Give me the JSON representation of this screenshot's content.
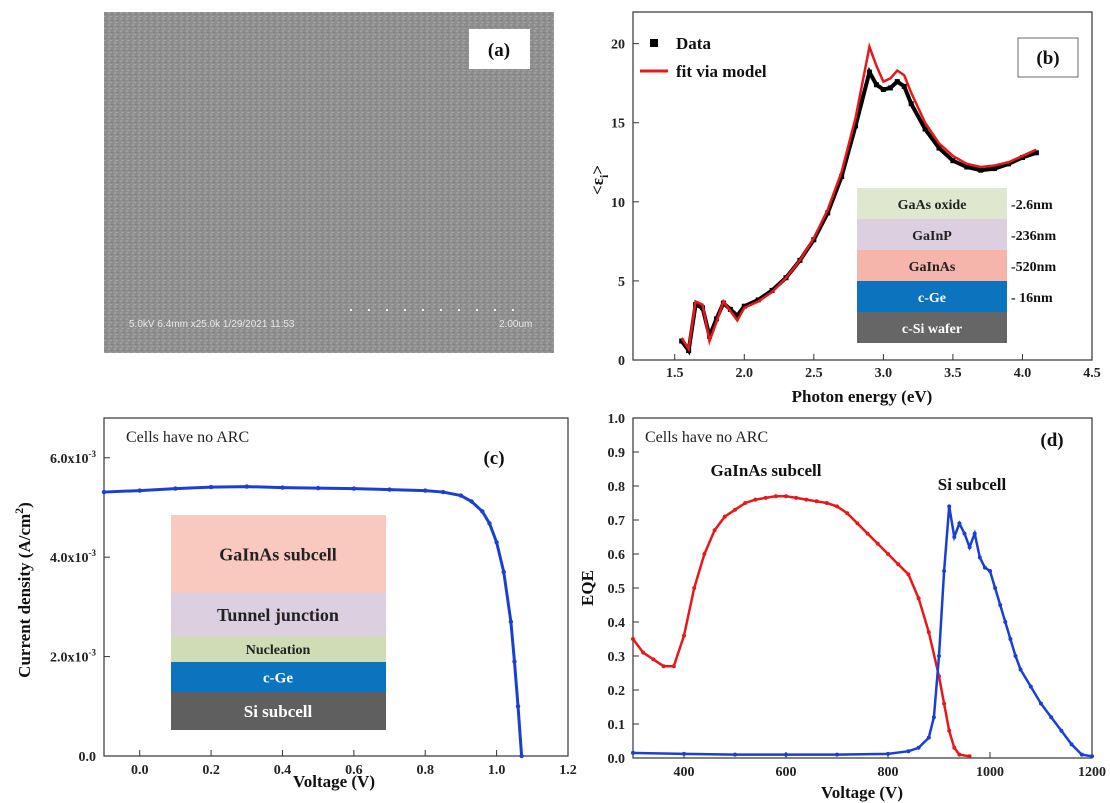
{
  "panel_a": {
    "label": "(a)",
    "sem_info": "5.0kV 6.4mm x25.0k 1/29/2021 11:53",
    "scale_bar": "2.00um"
  },
  "chart_data": [
    {
      "panel": "(b)",
      "type": "line",
      "xlabel": "Photon energy (eV)",
      "ylabel": "<ε",
      "ylabel_sub": "i",
      "ylabel_end": ">",
      "xlim": [
        1.2,
        4.5
      ],
      "ylim": [
        0,
        22
      ],
      "xticks": [
        "1.5",
        "2.0",
        "2.5",
        "3.0",
        "3.5",
        "4.0",
        "4.5"
      ],
      "yticks": [
        "0",
        "5",
        "10",
        "15",
        "20"
      ],
      "legend_position": "top-left",
      "series": [
        {
          "name": "Data",
          "color": "#000000",
          "marker": "square",
          "x": [
            1.55,
            1.6,
            1.65,
            1.7,
            1.75,
            1.8,
            1.85,
            1.9,
            1.95,
            2.0,
            2.1,
            2.2,
            2.3,
            2.4,
            2.5,
            2.6,
            2.7,
            2.8,
            2.9,
            2.95,
            3.0,
            3.05,
            3.1,
            3.15,
            3.2,
            3.3,
            3.4,
            3.5,
            3.6,
            3.7,
            3.8,
            3.9,
            4.0,
            4.1
          ],
          "y": [
            1.2,
            0.6,
            3.5,
            3.3,
            1.5,
            2.6,
            3.6,
            3.2,
            2.8,
            3.4,
            3.8,
            4.4,
            5.2,
            6.3,
            7.6,
            9.3,
            11.6,
            14.8,
            18.2,
            17.4,
            17.1,
            17.2,
            17.6,
            17.3,
            16.2,
            14.6,
            13.4,
            12.6,
            12.2,
            12.0,
            12.1,
            12.4,
            12.8,
            13.1
          ]
        },
        {
          "name": "fit via model",
          "color": "#e8181a",
          "marker": "none",
          "x": [
            1.55,
            1.6,
            1.65,
            1.7,
            1.75,
            1.8,
            1.85,
            1.9,
            1.95,
            2.0,
            2.1,
            2.2,
            2.3,
            2.4,
            2.5,
            2.6,
            2.7,
            2.8,
            2.9,
            2.95,
            3.0,
            3.05,
            3.1,
            3.15,
            3.2,
            3.3,
            3.4,
            3.5,
            3.6,
            3.7,
            3.8,
            3.9,
            4.0,
            4.1
          ],
          "y": [
            1.4,
            0.7,
            3.7,
            3.5,
            1.2,
            2.4,
            3.7,
            3.1,
            2.5,
            3.3,
            3.7,
            4.3,
            5.2,
            6.3,
            7.7,
            9.5,
            11.9,
            15.3,
            19.8,
            18.6,
            17.6,
            17.8,
            18.3,
            18.0,
            16.9,
            15.0,
            13.7,
            12.9,
            12.4,
            12.2,
            12.3,
            12.5,
            12.9,
            13.3
          ]
        }
      ],
      "stack": [
        {
          "layer": "GaAs oxide",
          "thickness": "-2.6nm",
          "color": "#dfe8cf"
        },
        {
          "layer": "GaInP",
          "thickness": "-236nm",
          "color": "#dccfe0"
        },
        {
          "layer": "GaInAs",
          "thickness": "-520nm",
          "color": "#f5b5ab"
        },
        {
          "layer": "c-Ge",
          "thickness": "- 16nm",
          "color": "#0c73bf"
        },
        {
          "layer": "c-Si wafer",
          "thickness": "",
          "color": "#666666"
        }
      ]
    },
    {
      "panel": "(c)",
      "type": "line",
      "xlabel": "Voltage (V)",
      "ylabel": "Current density (A/cm",
      "ylabel_sup": "2",
      "ylabel_end": ")",
      "xlim": [
        -0.1,
        1.2
      ],
      "ylim": [
        0,
        0.0068
      ],
      "xticks": [
        "0.0",
        "0.2",
        "0.4",
        "0.6",
        "0.8",
        "1.0",
        "1.2"
      ],
      "yticks": [
        {
          "value": 0,
          "mant": "0.0",
          "exp": ""
        },
        {
          "value": 0.002,
          "mant": "2.0x10",
          "exp": "-3"
        },
        {
          "value": 0.004,
          "mant": "4.0x10",
          "exp": "-3"
        },
        {
          "value": 0.006,
          "mant": "6.0x10",
          "exp": "-3"
        }
      ],
      "annotation": "Cells have no ARC",
      "series": [
        {
          "name": "",
          "color": "#1a3fd4",
          "x": [
            -0.1,
            0.0,
            0.1,
            0.2,
            0.3,
            0.4,
            0.5,
            0.6,
            0.7,
            0.8,
            0.85,
            0.9,
            0.93,
            0.96,
            0.98,
            1.0,
            1.02,
            1.04,
            1.05,
            1.06,
            1.07
          ],
          "y": [
            0.00531,
            0.00534,
            0.00538,
            0.00541,
            0.00542,
            0.0054,
            0.00539,
            0.00538,
            0.00536,
            0.00534,
            0.00531,
            0.00524,
            0.00512,
            0.00492,
            0.00468,
            0.0043,
            0.0037,
            0.0027,
            0.0019,
            0.001,
            0.0
          ]
        }
      ],
      "stack": [
        {
          "layer": "GaInAs subcell",
          "color": "#f9c9c0"
        },
        {
          "layer": "Tunnel junction",
          "color": "#dccfe0"
        },
        {
          "layer": "Nucleation",
          "color": "#cfdcb5"
        },
        {
          "layer": "c-Ge",
          "color": "#0c73bf"
        },
        {
          "layer": "Si subcell",
          "color": "#5f5f5f"
        }
      ]
    },
    {
      "panel": "(d)",
      "type": "line",
      "xlabel": "Voltage (V)",
      "ylabel": "EQE",
      "xlim": [
        300,
        1200
      ],
      "ylim": [
        0,
        1.0
      ],
      "xticks": [
        "400",
        "600",
        "800",
        "1000",
        "1200"
      ],
      "yticks": [
        "0.0",
        "0.1",
        "0.2",
        "0.3",
        "0.4",
        "0.5",
        "0.6",
        "0.7",
        "0.8",
        "0.9",
        "1.0"
      ],
      "annotation": "Cells have no ARC",
      "series": [
        {
          "name": "GaInAs subcell",
          "color": "#e8181a",
          "x": [
            300,
            320,
            340,
            360,
            380,
            400,
            420,
            440,
            460,
            480,
            500,
            520,
            540,
            560,
            580,
            600,
            620,
            640,
            660,
            680,
            700,
            720,
            740,
            760,
            780,
            800,
            820,
            840,
            860,
            880,
            900,
            910,
            920,
            930,
            940,
            960
          ],
          "y": [
            0.35,
            0.31,
            0.29,
            0.27,
            0.27,
            0.36,
            0.5,
            0.6,
            0.67,
            0.71,
            0.73,
            0.75,
            0.76,
            0.765,
            0.77,
            0.77,
            0.765,
            0.76,
            0.755,
            0.75,
            0.74,
            0.72,
            0.69,
            0.66,
            0.63,
            0.6,
            0.57,
            0.54,
            0.47,
            0.37,
            0.24,
            0.16,
            0.08,
            0.03,
            0.01,
            0.005
          ]
        },
        {
          "name": "Si subcell",
          "color": "#1a3fd4",
          "x": [
            300,
            400,
            500,
            600,
            700,
            800,
            840,
            860,
            880,
            890,
            900,
            910,
            920,
            930,
            940,
            950,
            960,
            970,
            980,
            990,
            1000,
            1010,
            1020,
            1030,
            1040,
            1050,
            1060,
            1080,
            1100,
            1120,
            1140,
            1160,
            1180,
            1200
          ],
          "y": [
            0.015,
            0.012,
            0.01,
            0.01,
            0.01,
            0.012,
            0.02,
            0.03,
            0.06,
            0.12,
            0.3,
            0.55,
            0.74,
            0.65,
            0.69,
            0.66,
            0.62,
            0.66,
            0.59,
            0.56,
            0.55,
            0.5,
            0.45,
            0.4,
            0.35,
            0.3,
            0.26,
            0.21,
            0.16,
            0.12,
            0.08,
            0.04,
            0.01,
            0.005
          ]
        }
      ]
    }
  ]
}
